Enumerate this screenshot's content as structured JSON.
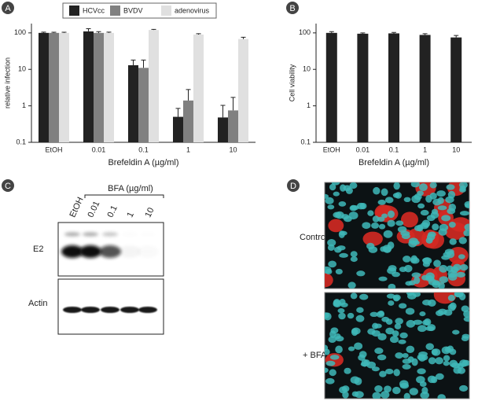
{
  "chart_data": [
    {
      "type": "bar",
      "panel": "A",
      "x_label": "Brefeldin A (µg/ml)",
      "y_label": "relative infection",
      "categories": [
        "EtOH",
        "0.01",
        "0.1",
        "1",
        "10"
      ],
      "series": [
        {
          "name": "HCVcc",
          "color": "#222222",
          "values": [
            100,
            110,
            13,
            0.5,
            0.48
          ],
          "errors": [
            5,
            20,
            5,
            0.35,
            0.55
          ]
        },
        {
          "name": "BVDV",
          "color": "#808080",
          "values": [
            100,
            100,
            11,
            1.4,
            0.75
          ],
          "errors": [
            4,
            8,
            7,
            1.4,
            0.95
          ]
        },
        {
          "name": "adenovirus",
          "color": "#e0e0e0",
          "values": [
            100,
            100,
            120,
            90,
            68
          ],
          "errors": [
            4,
            5,
            5,
            5,
            8
          ]
        }
      ],
      "log": true,
      "ylim": [
        0.1,
        180
      ],
      "yticks": [
        0.1,
        1,
        10,
        100
      ]
    },
    {
      "type": "bar",
      "panel": "B",
      "x_label": "Brefeldin A (µg/ml)",
      "y_label": "Cell viability",
      "categories": [
        "EtOH",
        "0.01",
        "0.1",
        "1",
        "10"
      ],
      "series": [
        {
          "color": "#222222",
          "values": [
            100,
            95,
            97,
            88,
            75
          ],
          "errors": [
            8,
            5,
            6,
            7,
            10
          ]
        }
      ],
      "log": true,
      "ylim": [
        0.1,
        180
      ],
      "yticks": [
        0.1,
        1,
        10,
        100
      ]
    }
  ],
  "blot": {
    "panel": "C",
    "treatment": "BFA (µg/ml)",
    "lanes": [
      "EtOH",
      "0.01",
      "0.1",
      "1",
      "10"
    ],
    "rows": [
      "E2",
      "Actin"
    ]
  },
  "microscopy": {
    "panel": "D",
    "rows": [
      "Control",
      "+ BFA"
    ]
  }
}
